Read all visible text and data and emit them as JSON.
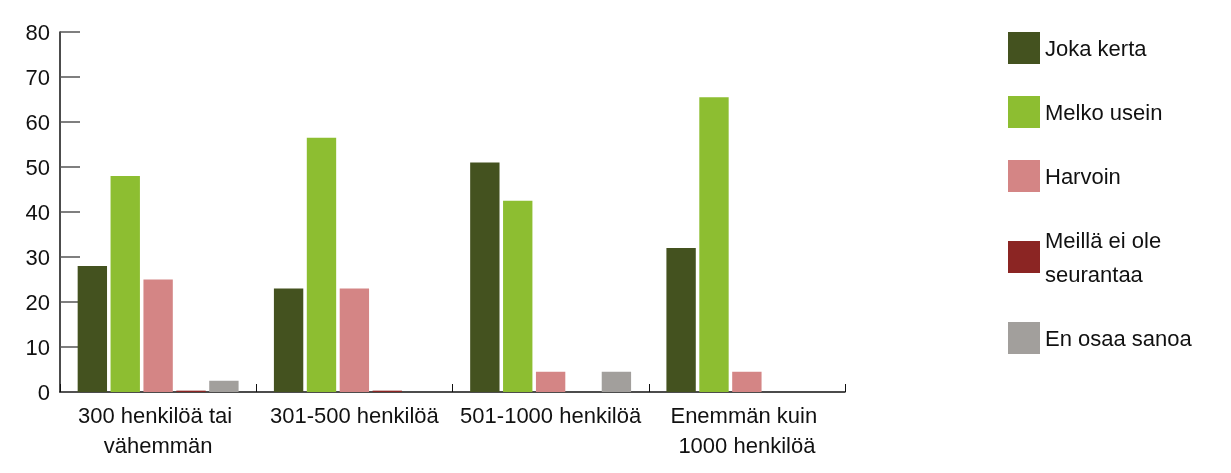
{
  "chart_data": {
    "type": "bar",
    "categories": [
      "300 henkilöä tai vähemmän",
      "301-500 henkilöä",
      "501-1000 henkilöä",
      "Enemmän kuin 1000 henkilöä"
    ],
    "series": [
      {
        "name": "Joka kerta",
        "color": "#44521f",
        "values": [
          28,
          23,
          51,
          32
        ]
      },
      {
        "name": "Melko usein",
        "color": "#8dbe31",
        "values": [
          48,
          56.5,
          42.5,
          65.5
        ]
      },
      {
        "name": "Harvoin",
        "color": "#d48585",
        "values": [
          25,
          23,
          4.5,
          4.5
        ]
      },
      {
        "name": "Meillä ei ole seurantaa",
        "color": "#8b2523",
        "values": [
          0.3,
          0.3,
          null,
          null
        ]
      },
      {
        "name": "En osaa sanoa",
        "color": "#a29f9c",
        "values": [
          2.5,
          null,
          4.5,
          null
        ]
      }
    ],
    "ylim": [
      0,
      80
    ],
    "yticks": [
      0,
      10,
      20,
      30,
      40,
      50,
      60,
      70,
      80
    ],
    "grid": false,
    "legend": "right"
  }
}
